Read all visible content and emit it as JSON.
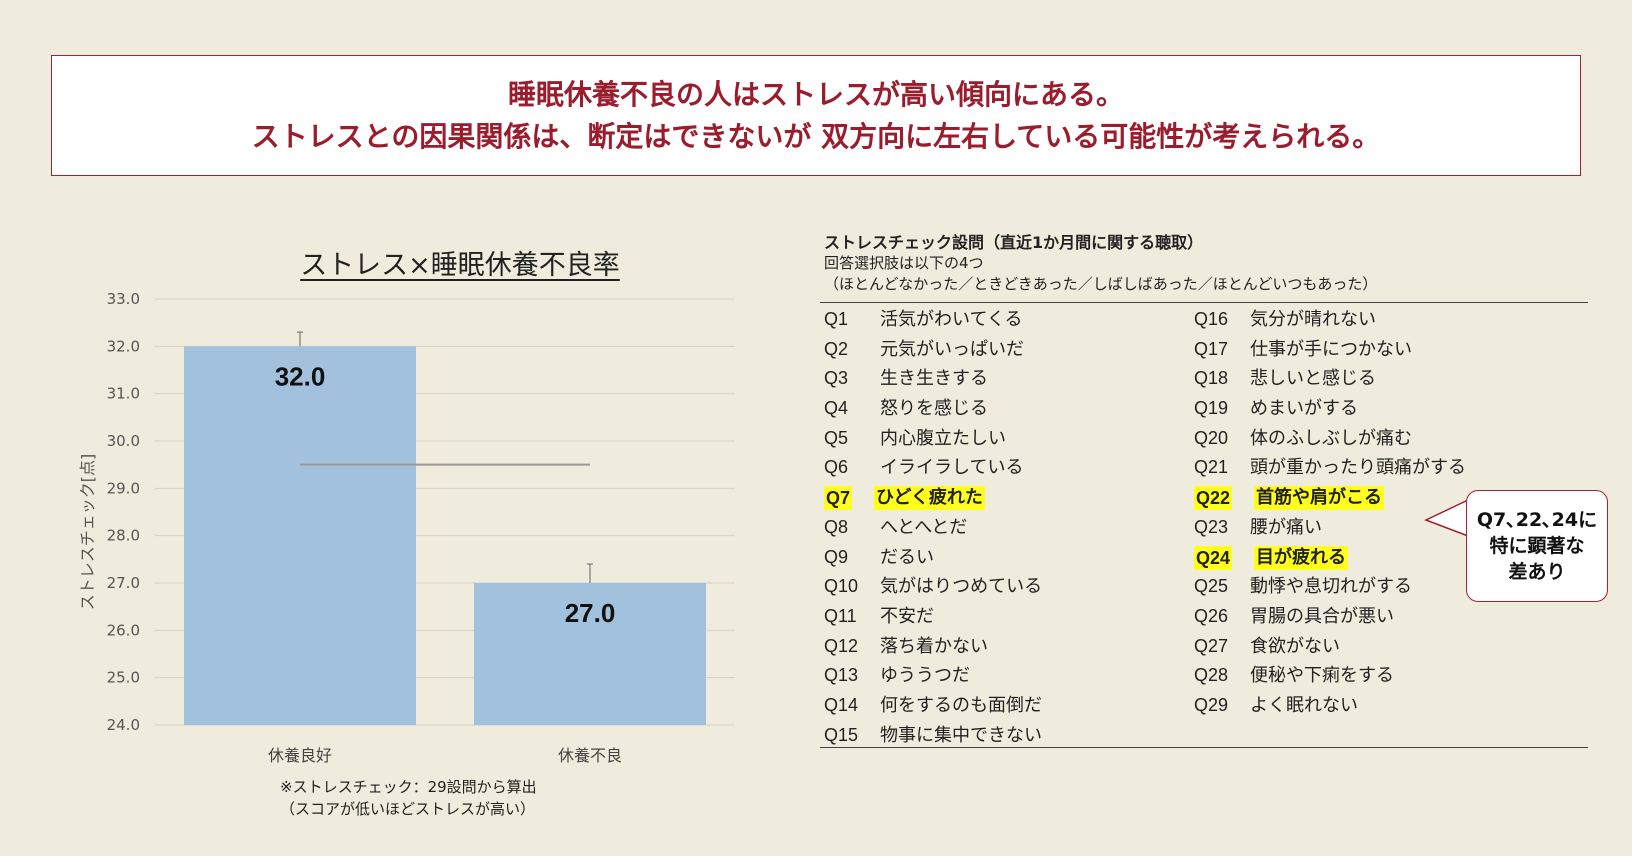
{
  "headline": {
    "line1": "睡眠休養不良の人はストレスが高い傾向にある。",
    "line2": "ストレスとの因果関係は、断定はできないが 双方向に左右している可能性が考えられる。"
  },
  "chart_data": {
    "type": "bar",
    "title": "ストレス×睡眠休養不良率",
    "ylabel": "ストレスチェック[点]",
    "categories": [
      "休養良好",
      "休養不良"
    ],
    "values": [
      32.0,
      27.0
    ],
    "value_labels": [
      "32.0",
      "27.0"
    ],
    "error_top": [
      32.3,
      27.4
    ],
    "reference_line": 29.5,
    "ylim": [
      24.0,
      33.0
    ],
    "yticks": [
      "24.0",
      "25.0",
      "26.0",
      "27.0",
      "28.0",
      "29.0",
      "30.0",
      "31.0",
      "32.0",
      "33.0"
    ],
    "grid": true,
    "bar_color": "#a2c1dd"
  },
  "footnote": {
    "line1": "※ストレスチェック：29設問から算出",
    "line2": "（スコアが低いほどストレスが高い）"
  },
  "questions": {
    "title": "ストレスチェック設問（直近1か月間に関する聴取）",
    "subtitle1": "回答選択肢は以下の4つ",
    "subtitle2": "（ほとんどなかった／ときどきあった／しばしばあった／ほとんどいつもあった）",
    "left": [
      {
        "num": "Q1",
        "text": "活気がわいてくる",
        "hl": false
      },
      {
        "num": "Q2",
        "text": "元気がいっぱいだ",
        "hl": false
      },
      {
        "num": "Q3",
        "text": "生き生きする",
        "hl": false
      },
      {
        "num": "Q4",
        "text": "怒りを感じる",
        "hl": false
      },
      {
        "num": "Q5",
        "text": "内心腹立たしい",
        "hl": false
      },
      {
        "num": "Q6",
        "text": "イライラしている",
        "hl": false
      },
      {
        "num": "Q7",
        "text": "ひどく疲れた",
        "hl": true
      },
      {
        "num": "Q8",
        "text": "へとへとだ",
        "hl": false
      },
      {
        "num": "Q9",
        "text": "だるい",
        "hl": false
      },
      {
        "num": "Q10",
        "text": "気がはりつめている",
        "hl": false
      },
      {
        "num": "Q11",
        "text": "不安だ",
        "hl": false
      },
      {
        "num": "Q12",
        "text": "落ち着かない",
        "hl": false
      },
      {
        "num": "Q13",
        "text": "ゆううつだ",
        "hl": false
      },
      {
        "num": "Q14",
        "text": "何をするのも面倒だ",
        "hl": false
      },
      {
        "num": "Q15",
        "text": "物事に集中できない",
        "hl": false
      }
    ],
    "right": [
      {
        "num": "Q16",
        "text": "気分が晴れない",
        "hl": false
      },
      {
        "num": "Q17",
        "text": "仕事が手につかない",
        "hl": false
      },
      {
        "num": "Q18",
        "text": "悲しいと感じる",
        "hl": false
      },
      {
        "num": "Q19",
        "text": "めまいがする",
        "hl": false
      },
      {
        "num": "Q20",
        "text": "体のふしぶしが痛む",
        "hl": false
      },
      {
        "num": "Q21",
        "text": "頭が重かったり頭痛がする",
        "hl": false
      },
      {
        "num": "Q22",
        "text": "首筋や肩がこる",
        "hl": true
      },
      {
        "num": "Q23",
        "text": "腰が痛い",
        "hl": false
      },
      {
        "num": "Q24",
        "text": "目が疲れる",
        "hl": true
      },
      {
        "num": "Q25",
        "text": "動悸や息切れがする",
        "hl": false
      },
      {
        "num": "Q26",
        "text": "胃腸の具合が悪い",
        "hl": false
      },
      {
        "num": "Q27",
        "text": "食欲がない",
        "hl": false
      },
      {
        "num": "Q28",
        "text": "便秘や下痢をする",
        "hl": false
      },
      {
        "num": "Q29",
        "text": "よく眠れない",
        "hl": false
      }
    ]
  },
  "callout": {
    "line1": "Q7､22､24に",
    "line2": "特に顕著な",
    "line3": "差あり"
  }
}
